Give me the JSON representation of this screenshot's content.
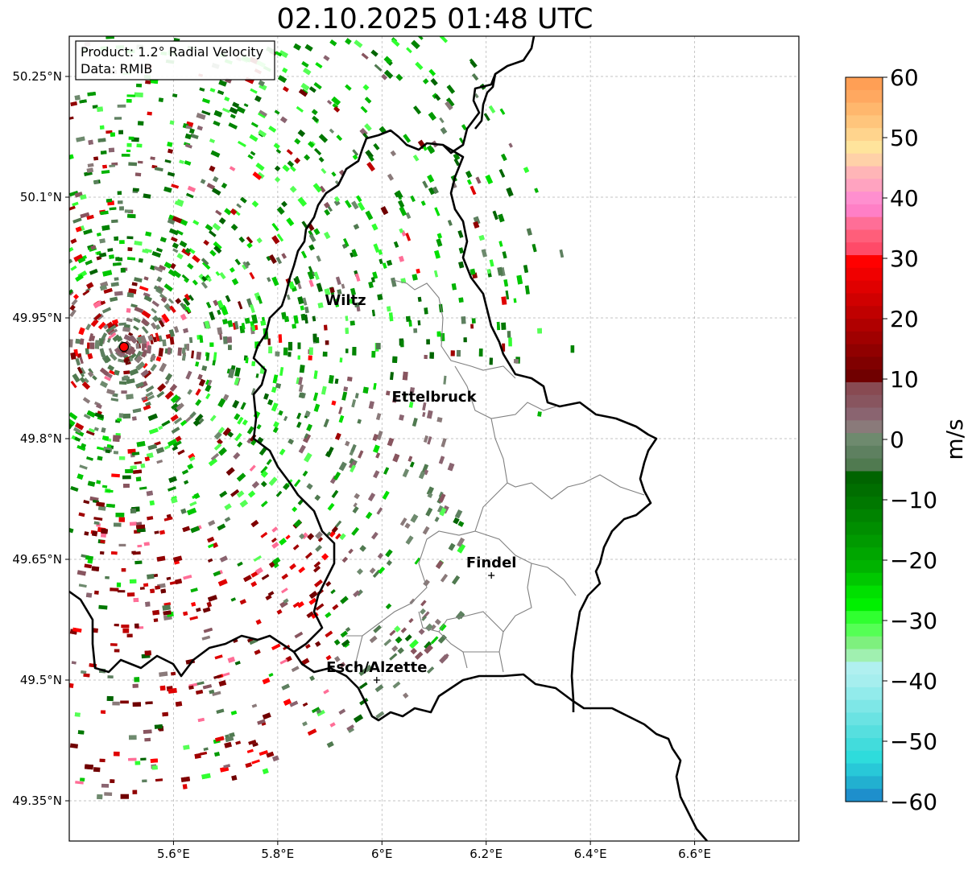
{
  "title": "02.10.2025 01:48 UTC",
  "info_box": {
    "product": "Product: 1.2° Radial Velocity",
    "data_source": "Data: RMIB"
  },
  "map": {
    "lon_range": [
      5.4,
      6.8
    ],
    "lat_range": [
      49.3,
      50.3
    ],
    "radar_site": {
      "lon": 5.505,
      "lat": 49.914
    },
    "x_ticks": [
      "5.6°E",
      "5.8°E",
      "6°E",
      "6.2°E",
      "6.4°E",
      "6.6°E"
    ],
    "x_tick_values": [
      5.6,
      5.8,
      6.0,
      6.2,
      6.4,
      6.6
    ],
    "y_ticks": [
      "50.25°N",
      "50.1°N",
      "49.95°N",
      "49.8°N",
      "49.65°N",
      "49.5°N",
      "49.35°N"
    ],
    "y_tick_values": [
      50.25,
      50.1,
      49.95,
      49.8,
      49.65,
      49.5,
      49.35
    ],
    "cities": [
      {
        "name": "Wiltz",
        "lon": 5.93,
        "lat": 49.97
      },
      {
        "name": "Ettelbruck",
        "lon": 6.1,
        "lat": 49.85
      },
      {
        "name": "Findel",
        "lon": 6.21,
        "lat": 49.63,
        "marker": true
      },
      {
        "name": "Esch/Alzette",
        "lon": 5.99,
        "lat": 49.5,
        "marker": true
      }
    ]
  },
  "colorbar": {
    "label": "m/s",
    "range": [
      -60,
      60
    ],
    "ticks": [
      "60",
      "50",
      "40",
      "30",
      "20",
      "10",
      "0",
      "−10",
      "−20",
      "−30",
      "−40",
      "−50",
      "−60"
    ],
    "tick_values": [
      60,
      50,
      40,
      30,
      20,
      10,
      0,
      -10,
      -20,
      -30,
      -40,
      -50,
      -60
    ],
    "colors_top_to_bottom": [
      "#ff9f55",
      "#ffa860",
      "#ffb76d",
      "#ffc57c",
      "#ffd48d",
      "#ffe49c",
      "#ffd1a8",
      "#ffb5b7",
      "#ffa3c0",
      "#ff8fcf",
      "#ff7fc6",
      "#ff6e97",
      "#ff5e7a",
      "#ff4a68",
      "#ff0000",
      "#f00000",
      "#e00000",
      "#d00000",
      "#c00000",
      "#b00000",
      "#a00000",
      "#900000",
      "#800000",
      "#700000",
      "#884a52",
      "#88555f",
      "#8a6470",
      "#8a7a7a",
      "#6e8a6e",
      "#5e8060",
      "#507a50",
      "#006400",
      "#006e00",
      "#007800",
      "#008300",
      "#008e00",
      "#009a00",
      "#00a600",
      "#00b300",
      "#00c800",
      "#00e000",
      "#00f000",
      "#30ff30",
      "#55ff55",
      "#7ef07e",
      "#a0f0b0",
      "#b0f0f0",
      "#a6eeee",
      "#92ebeb",
      "#7ee7e7",
      "#6ae3e3",
      "#56dfdf",
      "#42dcdc",
      "#2edcdc",
      "#28c8d8",
      "#22b0d0",
      "#1e8fcc"
    ]
  }
}
